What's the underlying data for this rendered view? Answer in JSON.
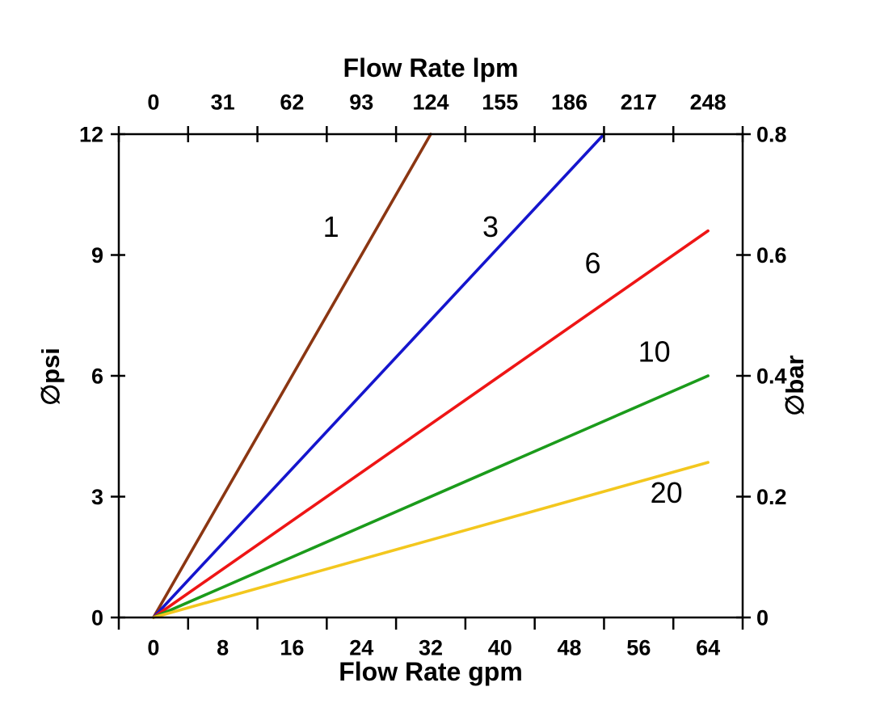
{
  "page": {
    "background_color": "#ffffff",
    "axis_color": "#000000",
    "text_color": "#000000"
  },
  "chart_data": {
    "type": "line",
    "top_axis_title": "Flow Rate lpm",
    "bottom_axis_title": "Flow Rate gpm",
    "left_axis_title": "∅psi",
    "right_axis_title": "∅bar",
    "x_gpm_ticks": [
      0,
      8,
      16,
      24,
      32,
      40,
      48,
      56,
      64
    ],
    "x_lpm_ticks": [
      0,
      31,
      62,
      93,
      124,
      155,
      186,
      217,
      248
    ],
    "y_psi_ticks": [
      0,
      3,
      6,
      9,
      12
    ],
    "y_bar_ticks": [
      "0",
      "0.2",
      "0.4",
      "0.6",
      "0.8"
    ],
    "xlim_gpm": [
      0,
      64
    ],
    "ylim_psi": [
      0,
      12
    ],
    "grid": "off",
    "legend": "inline-labels",
    "series": [
      {
        "name": "1",
        "color": "#8B3612",
        "points": [
          [
            0,
            0
          ],
          [
            32,
            12
          ]
        ]
      },
      {
        "name": "3",
        "color": "#1515CD",
        "points": [
          [
            0,
            0
          ],
          [
            52,
            12
          ]
        ]
      },
      {
        "name": "6",
        "color": "#EE1515",
        "points": [
          [
            0,
            0
          ],
          [
            64,
            9.6
          ]
        ]
      },
      {
        "name": "10",
        "color": "#1B9B1B",
        "points": [
          [
            0,
            0
          ],
          [
            64,
            6.0
          ]
        ]
      },
      {
        "name": "20",
        "color": "#F3C71E",
        "points": [
          [
            0,
            0
          ],
          [
            64,
            3.85
          ]
        ]
      }
    ],
    "annotations": [
      {
        "text": "1",
        "gpm": 20.5,
        "psi": 9.7
      },
      {
        "text": "3",
        "gpm": 38.9,
        "psi": 9.7
      },
      {
        "text": "6",
        "gpm": 50.7,
        "psi": 8.8
      },
      {
        "text": "10",
        "gpm": 57.8,
        "psi": 6.6
      },
      {
        "text": "20",
        "gpm": 59.2,
        "psi": 3.1
      }
    ]
  }
}
